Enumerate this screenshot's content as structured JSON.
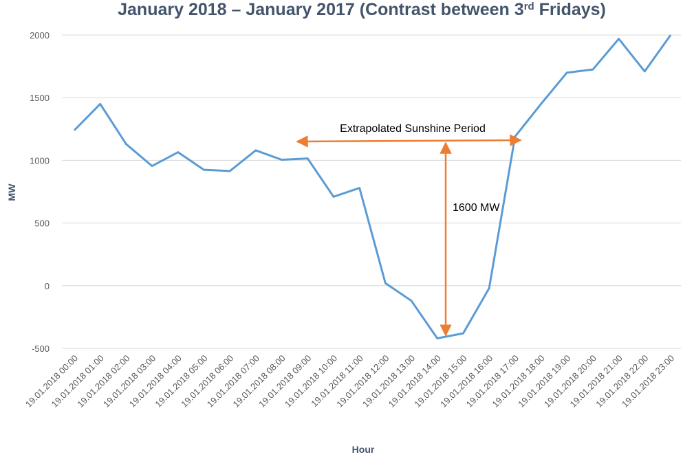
{
  "chart_data": {
    "type": "line",
    "title": [
      "January 2018 – January 2017 (Contrast between 3",
      "rd",
      " Fridays)"
    ],
    "x_label": "Hour",
    "y_label": "MW",
    "categories": [
      "19.01.2018 00:00",
      "19.01.2018 01:00",
      "19.01.2018 02:00",
      "19.01.2018 03:00",
      "19.01.2018 04:00",
      "19.01.2018 05:00",
      "19.01.2018 06:00",
      "19.01.2018 07:00",
      "19.01.2018 08:00",
      "19.01.2018 09:00",
      "19.01.2018 10:00",
      "19.01.2018 11:00",
      "19.01.2018 12:00",
      "19.01.2018 13:00",
      "19.01.2018 14:00",
      "19.01.2018 15:00",
      "19.01.2018 16:00",
      "19.01.2018 17:00",
      "19.01.2018 18:00",
      "19.01.2018 19:00",
      "19.01.2018 20:00",
      "19.01.2018 21:00",
      "19.01.2018 22:00",
      "19.01.2018 23:00"
    ],
    "series": [
      {
        "name": "MW",
        "color": "#5b9bd5",
        "values": [
          1240,
          1450,
          1130,
          955,
          1065,
          925,
          915,
          1080,
          1005,
          1015,
          710,
          780,
          20,
          -120,
          -420,
          -380,
          -20,
          1190,
          1450,
          1700,
          1725,
          1970,
          1710,
          2000
        ]
      }
    ],
    "ylim": [
      -500,
      2000
    ],
    "yticks": [
      -500,
      0,
      500,
      1000,
      1500,
      2000
    ],
    "grid": true,
    "annotations": [
      "Extrapolated Sunshine Period",
      "1600 MW"
    ]
  }
}
